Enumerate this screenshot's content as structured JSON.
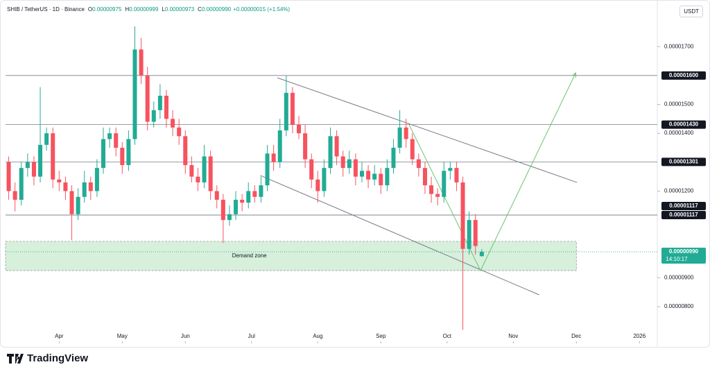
{
  "chart_data": {
    "type": "candlestick",
    "symbol": "SHIB / TetherUS · 1D · Binance",
    "ohlc_header": [
      {
        "label": "O",
        "value": "0.00000975"
      },
      {
        "label": "H",
        "value": "0.00000999"
      },
      {
        "label": "L",
        "value": "0.00000973"
      },
      {
        "label": "C",
        "value": "0.00000990"
      }
    ],
    "change": "+0.00000015 (+1.54%)",
    "currency": "USDT",
    "brand": "TradingView",
    "series": [
      {
        "up_color": "#22ab94",
        "down_color": "#f7525f",
        "open": [
          1.3e-05,
          1.2e-05,
          1.17e-05,
          1.28e-05,
          1.3e-05,
          1.25e-05,
          1.36e-05,
          1.4e-05,
          1.24e-05,
          1.23e-05,
          1.2e-05,
          1.12e-05,
          1.18e-05,
          1.23e-05,
          1.2e-05,
          1.28e-05,
          1.38e-05,
          1.4e-05,
          1.35e-05,
          1.29e-05,
          1.38e-05,
          1.69e-05,
          1.6e-05,
          1.44e-05,
          1.48e-05,
          1.53e-05,
          1.45e-05,
          1.42e-05,
          1.39e-05,
          1.29e-05,
          1.25e-05,
          1.23e-05,
          1.32e-05,
          1.2e-05,
          1.17e-05,
          1.1e-05,
          1.12e-05,
          1.17e-05,
          1.16e-05,
          1.2e-05,
          1.18e-05,
          1.22e-05,
          1.33e-05,
          1.3e-05,
          1.41e-05,
          1.54e-05,
          1.43e-05,
          1.4e-05,
          1.31e-05,
          1.24e-05,
          1.2e-05,
          1.28e-05,
          1.39e-05,
          1.32e-05,
          1.28e-05,
          1.31e-05,
          1.25e-05,
          1.27e-05,
          1.24e-05,
          1.26e-05,
          1.22e-05,
          1.28e-05,
          1.35e-05,
          1.42e-05,
          1.38e-05,
          1.31e-05,
          1.28e-05,
          1.22e-05,
          1.19e-05,
          1.18e-05,
          1.27e-05,
          1.28e-05,
          1.23e-05,
          1e-05,
          1.1e-05,
          9.75e-06
        ],
        "high": [
          1.32e-05,
          1.23e-05,
          1.3e-05,
          1.33e-05,
          1.32e-05,
          1.56e-05,
          1.42e-05,
          1.42e-05,
          1.27e-05,
          1.25e-05,
          1.22e-05,
          1.21e-05,
          1.27e-05,
          1.25e-05,
          1.31e-05,
          1.42e-05,
          1.42e-05,
          1.42e-05,
          1.37e-05,
          1.41e-05,
          1.77e-05,
          1.73e-05,
          1.63e-05,
          1.51e-05,
          1.57e-05,
          1.55e-05,
          1.48e-05,
          1.45e-05,
          1.41e-05,
          1.32e-05,
          1.28e-05,
          1.36e-05,
          1.34e-05,
          1.22e-05,
          1.19e-05,
          1.15e-05,
          1.2e-05,
          1.19e-05,
          1.23e-05,
          1.22e-05,
          1.25e-05,
          1.36e-05,
          1.36e-05,
          1.45e-05,
          1.6e-05,
          1.56e-05,
          1.46e-05,
          1.43e-05,
          1.33e-05,
          1.27e-05,
          1.31e-05,
          1.42e-05,
          1.41e-05,
          1.34e-05,
          1.34e-05,
          1.33e-05,
          1.3e-05,
          1.29e-05,
          1.29e-05,
          1.28e-05,
          1.31e-05,
          1.38e-05,
          1.48e-05,
          1.45e-05,
          1.4e-05,
          1.33e-05,
          1.3e-05,
          1.25e-05,
          1.21e-05,
          1.3e-05,
          1.3e-05,
          1.3e-05,
          1.25e-05,
          1.13e-05,
          1.12e-05,
          9.99e-06
        ],
        "low": [
          1.17e-05,
          1.13e-05,
          1.15e-05,
          1.25e-05,
          1.22e-05,
          1.23e-05,
          1.34e-05,
          1.21e-05,
          1.2e-05,
          1.17e-05,
          1.03e-05,
          1.1e-05,
          1.16e-05,
          1.17e-05,
          1.18e-05,
          1.26e-05,
          1.35e-05,
          1.32e-05,
          1.26e-05,
          1.27e-05,
          1.36e-05,
          1.57e-05,
          1.41e-05,
          1.42e-05,
          1.45e-05,
          1.42e-05,
          1.39e-05,
          1.36e-05,
          1.26e-05,
          1.23e-05,
          1.2e-05,
          1.21e-05,
          1.17e-05,
          1.14e-05,
          1.02e-05,
          1.08e-05,
          1.1e-05,
          1.13e-05,
          1.14e-05,
          1.16e-05,
          1.16e-05,
          1.2e-05,
          1.27e-05,
          1.28e-05,
          1.39e-05,
          1.4e-05,
          1.38e-05,
          1.28e-05,
          1.21e-05,
          1.16e-05,
          1.18e-05,
          1.26e-05,
          1.29e-05,
          1.25e-05,
          1.26e-05,
          1.22e-05,
          1.23e-05,
          1.21e-05,
          1.22e-05,
          1.19e-05,
          1.2e-05,
          1.26e-05,
          1.33e-05,
          1.35e-05,
          1.29e-05,
          1.25e-05,
          1.19e-05,
          1.16e-05,
          1.15e-05,
          1.16e-05,
          1.24e-05,
          1.2e-05,
          7.2e-06,
          9.8e-06,
          9.8e-06,
          9.73e-06
        ],
        "close": [
          1.2e-05,
          1.17e-05,
          1.28e-05,
          1.3e-05,
          1.25e-05,
          1.36e-05,
          1.4e-05,
          1.24e-05,
          1.23e-05,
          1.2e-05,
          1.12e-05,
          1.18e-05,
          1.23e-05,
          1.2e-05,
          1.28e-05,
          1.38e-05,
          1.4e-05,
          1.35e-05,
          1.29e-05,
          1.38e-05,
          1.69e-05,
          1.6e-05,
          1.44e-05,
          1.48e-05,
          1.53e-05,
          1.45e-05,
          1.42e-05,
          1.39e-05,
          1.29e-05,
          1.25e-05,
          1.23e-05,
          1.32e-05,
          1.2e-05,
          1.17e-05,
          1.1e-05,
          1.12e-05,
          1.17e-05,
          1.16e-05,
          1.2e-05,
          1.18e-05,
          1.22e-05,
          1.33e-05,
          1.3e-05,
          1.41e-05,
          1.54e-05,
          1.43e-05,
          1.4e-05,
          1.31e-05,
          1.24e-05,
          1.2e-05,
          1.28e-05,
          1.39e-05,
          1.32e-05,
          1.28e-05,
          1.31e-05,
          1.25e-05,
          1.27e-05,
          1.24e-05,
          1.26e-05,
          1.22e-05,
          1.28e-05,
          1.35e-05,
          1.42e-05,
          1.38e-05,
          1.31e-05,
          1.28e-05,
          1.22e-05,
          1.19e-05,
          1.18e-05,
          1.27e-05,
          1.28e-05,
          1.23e-05,
          1e-05,
          1.1e-05,
          1.01e-05,
          9.9e-06
        ]
      }
    ],
    "xlim": [
      -0.5,
      102.5
    ],
    "xticks": [
      {
        "value": 8,
        "label": "Apr"
      },
      {
        "value": 18,
        "label": "May"
      },
      {
        "value": 28,
        "label": "Jun"
      },
      {
        "value": 38.5,
        "label": "Jul"
      },
      {
        "value": 49,
        "label": "Aug"
      },
      {
        "value": 59,
        "label": "Sep"
      },
      {
        "value": 69.5,
        "label": "Oct"
      },
      {
        "value": 80,
        "label": "Nov"
      },
      {
        "value": 90,
        "label": "Dec"
      },
      {
        "value": 100,
        "label": "2026"
      }
    ],
    "ylim": [
      6.73e-06,
      1.842e-05
    ],
    "yticks": [
      {
        "value": 8e-06,
        "label": "0.00000800"
      },
      {
        "value": 9e-06,
        "label": "0.00000900"
      },
      {
        "value": 1.2e-05,
        "label": "0.00001200"
      },
      {
        "value": 1.4e-05,
        "label": "0.00001400"
      },
      {
        "value": 1.5e-05,
        "label": "0.00001500"
      },
      {
        "value": 1.7e-05,
        "label": "0.00001700"
      }
    ],
    "grid": false,
    "levels": [
      {
        "value": 1.6e-05,
        "label": "0.00001600"
      },
      {
        "value": 1.43e-05,
        "label": "0.00001430"
      },
      {
        "value": 1.301e-05,
        "label": "0.00001301"
      },
      {
        "value": 1.117e-05,
        "label": "0.00001117"
      },
      {
        "value": 1.117e-05,
        "label": "0.00001117"
      }
    ],
    "last_price": {
      "value": 9.9e-06,
      "label": "0.00000990",
      "countdown": "14:10:17",
      "color": "#22ab94"
    },
    "zone": {
      "label": "Demand zone",
      "xlim": [
        -0.5,
        90
      ],
      "ylim": [
        9.25e-06,
        1.026e-05
      ],
      "color": "#c8ebd0"
    },
    "drawings": [
      {
        "color": "#787b86",
        "points": [
          [
            42.6,
            1.592e-05
          ],
          [
            90.1,
            1.23e-05
          ]
        ]
      },
      {
        "color": "#787b86",
        "points": [
          [
            39.9,
            1.254e-05
          ],
          [
            84.1,
            8.41e-06
          ]
        ]
      },
      {
        "color": "#6cc36c",
        "arrow": true,
        "points": [
          [
            63.5,
            1.429e-05
          ],
          [
            74.8,
            9.25e-06
          ],
          [
            89.9,
            1.609e-05
          ]
        ]
      }
    ]
  }
}
